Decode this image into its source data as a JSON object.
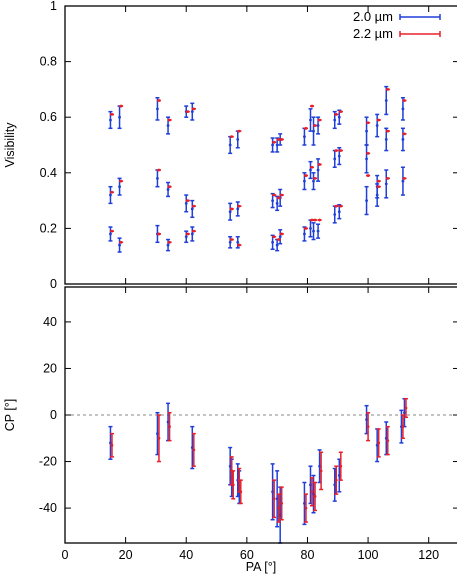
{
  "chart_data": [
    {
      "type": "scatter",
      "panel": "top",
      "title": "",
      "xlabel": "",
      "ylabel": "Visibility",
      "xlim": [
        0,
        130
      ],
      "ylim": [
        0,
        1
      ],
      "xticks": [
        0,
        20,
        40,
        60,
        80,
        100,
        120
      ],
      "xtick_labels_shown": false,
      "yticks": [
        0,
        0.2,
        0.4,
        0.6,
        0.8,
        1
      ],
      "ytick_labels": [
        "0",
        "0.2",
        "0.4",
        "0.6",
        "0.8",
        "1"
      ],
      "legend_position": "top-right",
      "series": [
        {
          "name": "2.0 µm",
          "color": "#1f3fd8",
          "x": [
            15,
            15,
            15,
            18,
            18,
            18,
            30.5,
            30.5,
            30.5,
            34,
            34,
            34,
            40,
            40,
            40,
            42,
            42,
            42,
            54.5,
            54.5,
            54.5,
            57,
            57,
            57,
            68.5,
            68.5,
            68.5,
            70,
            70,
            70,
            71,
            71,
            71,
            79,
            79,
            79,
            81,
            81,
            81,
            82,
            82,
            82,
            83.5,
            83.5,
            83.5,
            89,
            89,
            89,
            90.5,
            90.5,
            90.5,
            99.5,
            99.5,
            99.5,
            103,
            103,
            103,
            106,
            106,
            106,
            111.5,
            111.5,
            111.5
          ],
          "y": [
            0.59,
            0.32,
            0.18,
            0.6,
            0.35,
            0.14,
            0.63,
            0.38,
            0.18,
            0.57,
            0.34,
            0.14,
            0.62,
            0.29,
            0.17,
            0.62,
            0.27,
            0.18,
            0.5,
            0.26,
            0.15,
            0.52,
            0.27,
            0.15,
            0.5,
            0.3,
            0.15,
            0.5,
            0.29,
            0.14,
            0.52,
            0.31,
            0.17,
            0.53,
            0.37,
            0.18,
            0.59,
            0.41,
            0.2,
            0.55,
            0.37,
            0.19,
            0.57,
            0.41,
            0.19,
            0.59,
            0.45,
            0.25,
            0.6,
            0.46,
            0.26,
            0.55,
            0.45,
            0.3,
            0.57,
            0.35,
            0.32,
            0.66,
            0.52,
            0.36,
            0.63,
            0.52,
            0.37
          ],
          "err": [
            0.03,
            0.03,
            0.025,
            0.04,
            0.03,
            0.025,
            0.04,
            0.03,
            0.03,
            0.03,
            0.025,
            0.02,
            0.02,
            0.03,
            0.02,
            0.03,
            0.03,
            0.025,
            0.03,
            0.03,
            0.02,
            0.03,
            0.025,
            0.02,
            0.025,
            0.025,
            0.025,
            0.025,
            0.025,
            0.02,
            0.02,
            0.03,
            0.025,
            0.03,
            0.03,
            0.025,
            0.04,
            0.03,
            0.03,
            0.05,
            0.03,
            0.03,
            0.03,
            0.04,
            0.025,
            0.03,
            0.03,
            0.03,
            0.025,
            0.03,
            0.025,
            0.05,
            0.05,
            0.05,
            0.04,
            0.04,
            0.04,
            0.05,
            0.04,
            0.05,
            0.04,
            0.04,
            0.05
          ]
        },
        {
          "name": "2.2 µm",
          "color": "#e8202a",
          "x": [
            15.5,
            15.5,
            15.5,
            18.5,
            18.5,
            18.5,
            31,
            31,
            31,
            34.5,
            34.5,
            34.5,
            40.5,
            40.5,
            40.5,
            42.5,
            42.5,
            42.5,
            55,
            55,
            55,
            57.5,
            57.5,
            57.5,
            69,
            69,
            69,
            70.5,
            70.5,
            70.5,
            71.5,
            71.5,
            71.5,
            79.5,
            79.5,
            79.5,
            81.5,
            81.5,
            81.5,
            82.5,
            82.5,
            82.5,
            84,
            84,
            84,
            89.5,
            89.5,
            89.5,
            91,
            91,
            91,
            100,
            100,
            100,
            103.5,
            103.5,
            103.5,
            106.5,
            106.5,
            106.5,
            112,
            112,
            112
          ],
          "y": [
            0.61,
            0.33,
            0.19,
            0.64,
            0.37,
            0.15,
            0.66,
            0.41,
            0.18,
            0.59,
            0.35,
            0.15,
            0.62,
            0.3,
            0.18,
            0.63,
            0.28,
            0.19,
            0.53,
            0.27,
            0.16,
            0.55,
            0.28,
            0.14,
            0.51,
            0.32,
            0.17,
            0.52,
            0.31,
            0.16,
            0.52,
            0.32,
            0.18,
            0.56,
            0.39,
            0.2,
            0.64,
            0.42,
            0.23,
            0.57,
            0.38,
            0.23,
            0.59,
            0.43,
            0.23,
            0.61,
            0.48,
            0.28,
            0.62,
            0.48,
            0.28,
            0.58,
            0.47,
            0.39,
            0.59,
            0.37,
            0.35,
            0.7,
            0.55,
            0.38,
            0.66,
            0.54,
            0.38
          ]
        }
      ]
    },
    {
      "type": "scatter",
      "panel": "bottom",
      "title": "",
      "xlabel": "PA [°]",
      "ylabel": "CP [°]",
      "xlim": [
        0,
        130
      ],
      "ylim": [
        -55,
        55
      ],
      "xticks": [
        0,
        20,
        40,
        60,
        80,
        100,
        120
      ],
      "xtick_labels": [
        "0",
        "20",
        "40",
        "60",
        "80",
        "100",
        "120"
      ],
      "yticks": [
        -40,
        -20,
        0,
        20,
        40
      ],
      "ytick_labels": [
        "-40",
        "-20",
        "0",
        "20",
        "40"
      ],
      "reference_line_y": 0,
      "series": [
        {
          "name": "2.0 µm",
          "color": "#1f3fd8",
          "x": [
            15,
            30.5,
            34,
            42,
            54.5,
            55,
            57,
            57.5,
            68.5,
            70,
            71,
            79,
            81,
            82,
            84,
            89,
            90.5,
            99.5,
            103,
            106,
            111,
            112
          ],
          "y": [
            -12,
            -8,
            -3,
            -14,
            -22,
            -27,
            -28,
            -31,
            -33,
            -36,
            -43,
            -38,
            -30,
            -34,
            -22,
            -30,
            -26,
            -2,
            -13,
            -10,
            -5,
            1
          ],
          "err": [
            7,
            9,
            8,
            9,
            8,
            8,
            7,
            7,
            12,
            12,
            12,
            9,
            8,
            8,
            7,
            7,
            7,
            6,
            7,
            7,
            7,
            6
          ]
        },
        {
          "name": "2.2 µm",
          "color": "#e8202a",
          "x": [
            15.5,
            31,
            34.5,
            42.5,
            55,
            55.5,
            57.5,
            58,
            69,
            70.5,
            71.5,
            79.5,
            81.5,
            82.5,
            84.5,
            89.5,
            91,
            100,
            103.5,
            106.5,
            111.5,
            112.5
          ],
          "y": [
            -13,
            -10,
            -5,
            -15,
            -24,
            -30,
            -28,
            -33,
            -36,
            -40,
            -38,
            -40,
            -33,
            -35,
            -24,
            -28,
            -22,
            -5,
            -12,
            -11,
            -5,
            3
          ],
          "err": [
            5,
            10,
            6,
            7,
            6,
            6,
            5,
            5,
            8,
            6,
            7,
            6,
            6,
            6,
            8,
            6,
            6,
            6,
            6,
            6,
            5,
            4
          ]
        }
      ]
    }
  ]
}
